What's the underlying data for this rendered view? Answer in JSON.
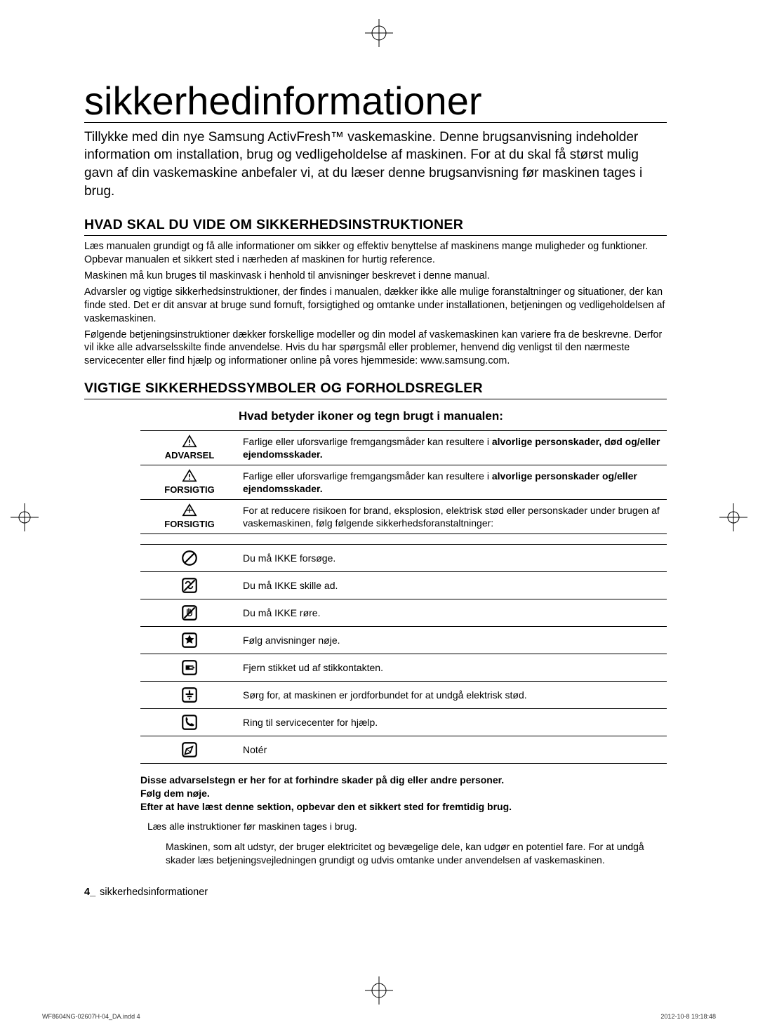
{
  "title": "sikkerhedinformationer",
  "intro": "Tillykke med din nye Samsung ActivFresh™ vaskemaskine. Denne brugsanvisning indeholder information om installation, brug og vedligeholdelse af maskinen. For at du skal få størst mulig gavn af din vaskemaskine anbefaler vi, at du læser denne brugsanvisning før maskinen tages i brug.",
  "section1_heading": "HVAD SKAL DU VIDE OM SIKKERHEDSINSTRUKTIONER",
  "section1_p1": "Læs manualen grundigt og få alle informationer om sikker og effektiv benyttelse af maskinens mange muligheder og funktioner. Opbevar manualen et sikkert sted i nærheden af maskinen for hurtig reference.",
  "section1_p2": "Maskinen må kun bruges til maskinvask i henhold til anvisninger beskrevet i denne manual.",
  "section1_p3": "Advarsler og vigtige sikkerhedsinstruktioner, der findes i manualen, dækker ikke alle mulige foranstaltninger og situationer, der kan finde sted.  Det er dit ansvar at bruge sund fornuft, forsigtighed og  omtanke under installationen, betjeningen og vedligeholdelsen af vaskemaskinen.",
  "section1_p4": "Følgende betjeningsinstruktioner dækker forskellige modeller og din model af vaskemaskinen kan variere fra de beskrevne. Derfor  vil ikke alle advarselsskilte finde anvendelse. Hvis du har spørgsmål eller problemer, henvend dig venligst til den nærmeste servicecenter eller find hjælp og informationer online på vores hjemmeside: www.samsung.com.",
  "section2_heading": "VIGTIGE SIKKERHEDSSYMBOLER OG FORHOLDSREGLER",
  "section2_sub": "Hvad betyder ikoner og tegn brugt i manualen:",
  "warn_table": [
    {
      "label": "ADVARSEL",
      "icon": "warning",
      "text_pre": "Farlige eller uforsvarlige fremgangsmåder kan resultere i ",
      "text_bold": "alvorlige personskader, død og/eller ejendomsskader."
    },
    {
      "label": "FORSIGTIG",
      "icon": "warning",
      "text_pre": "Farlige eller uforsvarlige fremgangsmåder kan resultere i ",
      "text_bold": "alvorlige personskader og/eller ejendomsskader."
    },
    {
      "label": "FORSIGTIG",
      "icon": "caution",
      "text_pre": "For at reducere risikoen for brand, eksplosion, elektrisk stød eller personskader under brugen af vaskemaskinen, følg følgende sikkerhedsforanstaltninger:",
      "text_bold": ""
    }
  ],
  "icon_table": [
    {
      "icon": "no-attempt",
      "text": "Du må IKKE forsøge."
    },
    {
      "icon": "no-disassemble",
      "text": "Du må IKKE skille ad."
    },
    {
      "icon": "no-touch",
      "text": "Du må IKKE røre."
    },
    {
      "icon": "follow",
      "text": "Følg anvisninger nøje."
    },
    {
      "icon": "unplug",
      "text": "Fjern stikket ud af stikkontakten."
    },
    {
      "icon": "ground",
      "text": "Sørg for, at maskinen er jordforbundet for at undgå elektrisk stød."
    },
    {
      "icon": "call",
      "text": "Ring til servicecenter for hjælp."
    },
    {
      "icon": "note",
      "text": "Notér"
    }
  ],
  "footer_bold1": "Disse advarselstegn er her for at forhindre skader på dig eller andre personer.",
  "footer_bold2": "Følg dem nøje.",
  "footer_bold3": "Efter at have læst denne sektion, opbevar den et sikkert sted for fremtidig brug.",
  "footer_line1": "Læs alle instruktioner før maskinen tages i brug.",
  "footer_line2": "Maskinen, som alt udstyr, der bruger elektricitet og bevægelige dele, kan udgør en potentiel fare.  For at undgå skader læs betjeningsvejledningen grundigt og udvis omtanke under anvendelsen af vaskemaskinen.",
  "page_footer_num": "4_",
  "page_footer_text": " sikkerhedsinformationer",
  "meta_left": "WF8604NG-02607H-04_DA.indd   4",
  "meta_right": "2012-10-8   19:18:48"
}
